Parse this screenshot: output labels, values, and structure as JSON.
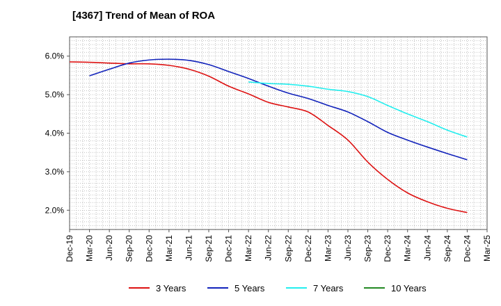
{
  "chart_data": {
    "type": "line",
    "title": "[4367]  Trend of Mean of ROA",
    "xlabel": "",
    "ylabel": "",
    "ylim": [
      1.5,
      6.5
    ],
    "y_ticks": [
      2.0,
      3.0,
      4.0,
      5.0,
      6.0
    ],
    "y_tick_labels": [
      "2.0%",
      "3.0%",
      "4.0%",
      "5.0%",
      "6.0%"
    ],
    "categories": [
      "Dec-19",
      "Mar-20",
      "Jun-20",
      "Sep-20",
      "Dec-20",
      "Mar-21",
      "Jun-21",
      "Sep-21",
      "Dec-21",
      "Mar-22",
      "Jun-22",
      "Sep-22",
      "Dec-22",
      "Mar-23",
      "Jun-23",
      "Sep-23",
      "Dec-23",
      "Mar-24",
      "Jun-24",
      "Sep-24",
      "Dec-24",
      "Mar-25"
    ],
    "grid": true,
    "legend_position": "bottom",
    "series": [
      {
        "name": "3 Years",
        "color": "#dd1111",
        "values": [
          5.85,
          5.84,
          5.82,
          5.8,
          5.8,
          5.76,
          5.66,
          5.48,
          5.22,
          5.02,
          4.8,
          4.68,
          4.55,
          4.2,
          3.82,
          3.25,
          2.8,
          2.45,
          2.22,
          2.05,
          1.94,
          null
        ]
      },
      {
        "name": "5 Years",
        "color": "#1122bb",
        "values": [
          null,
          5.49,
          5.66,
          5.82,
          5.9,
          5.92,
          5.89,
          5.78,
          5.6,
          5.42,
          5.22,
          5.04,
          4.9,
          4.72,
          4.55,
          4.3,
          4.02,
          3.82,
          3.64,
          3.47,
          3.31,
          null
        ]
      },
      {
        "name": "7 Years",
        "color": "#22eeee",
        "values": [
          null,
          null,
          null,
          null,
          null,
          null,
          null,
          null,
          null,
          5.33,
          5.29,
          5.27,
          5.22,
          5.14,
          5.08,
          4.95,
          4.72,
          4.5,
          4.3,
          4.08,
          3.9,
          null
        ]
      },
      {
        "name": "10 Years",
        "color": "#228822",
        "values": [
          null,
          null,
          null,
          null,
          null,
          null,
          null,
          null,
          null,
          null,
          null,
          null,
          null,
          null,
          null,
          null,
          null,
          null,
          null,
          null,
          null,
          null
        ]
      }
    ]
  }
}
